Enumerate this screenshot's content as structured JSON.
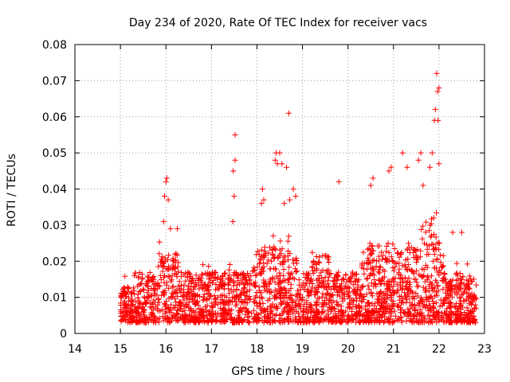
{
  "chart_data": {
    "type": "scatter",
    "title": "Day 234 of 2020, Rate Of TEC Index for receiver vacs",
    "xlabel": "GPS time / hours",
    "ylabel": "ROTI / TECUs",
    "xlim": [
      14,
      23
    ],
    "ylim": [
      0,
      0.08
    ],
    "xticks": [
      "14",
      "15",
      "16",
      "17",
      "18",
      "19",
      "20",
      "21",
      "22",
      "23"
    ],
    "yticks": [
      "0",
      "0.01",
      "0.02",
      "0.03",
      "0.04",
      "0.05",
      "0.06",
      "0.07",
      "0.08"
    ],
    "grid": true,
    "marker": "+",
    "color": "#ff0000",
    "series": [
      {
        "name": "ROTI",
        "note": "dense band of thousands of points from 15.0 to 22.8 h, mostly 0.003-0.022 TECU; listed points are the visible outliers/peaks",
        "x": [
          15.95,
          15.97,
          16.0,
          16.02,
          16.05,
          16.1,
          16.25,
          17.47,
          17.5,
          17.52,
          17.52,
          17.48,
          18.1,
          18.12,
          18.15,
          18.4,
          18.42,
          18.45,
          18.5,
          18.55,
          18.6,
          18.65,
          18.7,
          18.72,
          18.8,
          18.85,
          19.8,
          20.5,
          20.55,
          20.9,
          20.95,
          21.2,
          21.3,
          21.55,
          21.6,
          21.65,
          21.8,
          21.85,
          21.9,
          21.92,
          21.95,
          21.97,
          21.98,
          22.0,
          22.0,
          22.3,
          22.5
        ],
        "y": [
          0.031,
          0.038,
          0.042,
          0.043,
          0.037,
          0.029,
          0.029,
          0.031,
          0.038,
          0.048,
          0.055,
          0.045,
          0.036,
          0.04,
          0.037,
          0.048,
          0.05,
          0.047,
          0.05,
          0.047,
          0.036,
          0.046,
          0.061,
          0.037,
          0.04,
          0.038,
          0.042,
          0.041,
          0.043,
          0.045,
          0.046,
          0.05,
          0.046,
          0.048,
          0.05,
          0.041,
          0.046,
          0.05,
          0.059,
          0.062,
          0.072,
          0.067,
          0.059,
          0.068,
          0.047,
          0.028,
          0.028
        ]
      }
    ]
  }
}
